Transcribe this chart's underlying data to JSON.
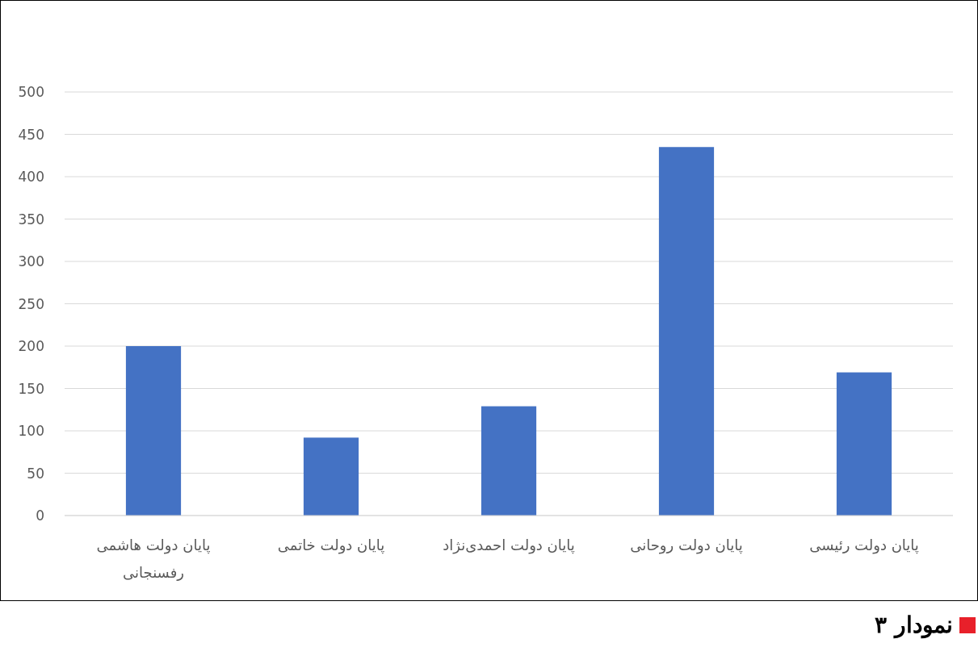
{
  "chart_data": {
    "type": "bar",
    "title": "نمودار ۳",
    "categories": [
      "پایان دولت هاشمی رفسنجانی",
      "پایان دولت خاتمی",
      "پایان دولت احمدی‌نژاد",
      "پایان دولت روحانی",
      "پایان دولت رئیسی"
    ],
    "values": [
      200,
      92,
      129,
      435,
      169
    ],
    "color": "#4472c4",
    "ylim": [
      0,
      500
    ],
    "yticks": [
      0,
      50,
      100,
      150,
      200,
      250,
      300,
      350,
      400,
      450,
      500
    ],
    "grid": "y"
  }
}
